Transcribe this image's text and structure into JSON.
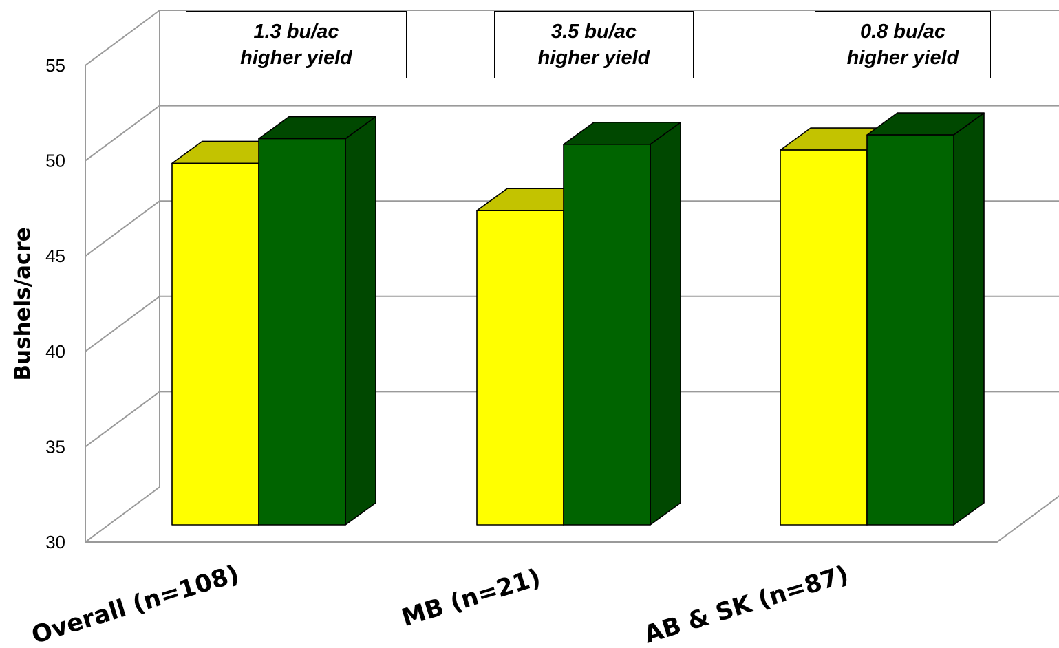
{
  "chart_data": {
    "type": "bar",
    "categories": [
      "Overall (n=108)",
      "MB (n=21)",
      "AB & SK (n=87)"
    ],
    "series": [
      {
        "values": [
          49.1,
          46.6,
          49.8
        ],
        "color": "#ffff00"
      },
      {
        "values": [
          50.4,
          50.1,
          50.6
        ],
        "color": "#006400"
      }
    ],
    "ylabel": "Bushels/acre",
    "ylim": [
      30,
      55
    ],
    "yticks": [
      30,
      35,
      40,
      45,
      50,
      55
    ],
    "grid": true,
    "style": "3d-clustered-column",
    "annotations": [
      {
        "category": "Overall (n=108)",
        "line1": "1.3 bu/ac",
        "line2": "higher yield"
      },
      {
        "category": "MB (n=21)",
        "line1": "3.5 bu/ac",
        "line2": "higher yield"
      },
      {
        "category": "AB & SK (n=87)",
        "line1": "0.8 bu/ac",
        "line2": "higher yield"
      }
    ]
  }
}
